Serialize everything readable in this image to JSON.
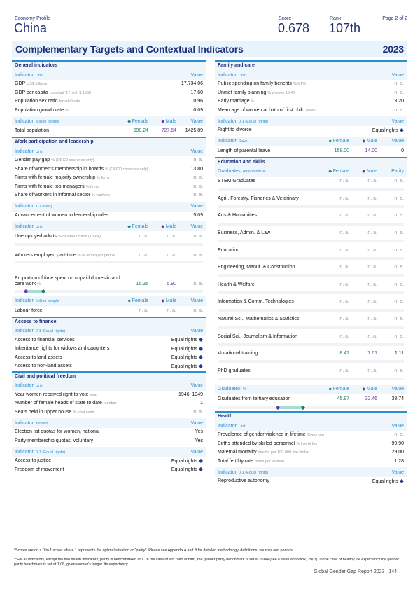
{
  "header": {
    "doc_label": "Economy Profile",
    "country": "China",
    "score_label": "Score",
    "score": "0.678",
    "rank_label": "Rank",
    "rank": "107th",
    "page": "Page 2 of 2"
  },
  "banner": {
    "title": "Complementary Targets and Contextual Indicators",
    "year": "2023"
  },
  "colors": {
    "accent": "#2a8fd0",
    "navy": "#1e2f78",
    "female": "#1f7a6a",
    "male": "#6a3d9a",
    "parity_diamond": "#243a8f",
    "band": "#eef6fc"
  },
  "track_scale": [
    0,
    100
  ],
  "columns": [
    [
      {
        "title": "General indicators",
        "groups": [
          {
            "header": {
              "label": "Indicator",
              "unit": "Unit",
              "value": "Value"
            },
            "rows": [
              {
                "name": "GDP",
                "unit": "US$ billions",
                "value": "17,734.06"
              },
              {
                "name": "GDP per capita",
                "unit": "constant '17, intl. $ 1000",
                "value": "17.60"
              },
              {
                "name": "Population sex ratio",
                "unit": "female/male",
                "value": "0.96"
              },
              {
                "name": "Population growth rate",
                "unit": "%",
                "value": "0.09"
              }
            ]
          },
          {
            "header": {
              "label": "Indicator",
              "unit": "Million people",
              "female": "Female",
              "male": "Male",
              "value": "Value"
            },
            "rows": [
              {
                "name": "Total population",
                "female": "698.24",
                "male": "727.64",
                "value": "1425.89"
              }
            ]
          }
        ]
      },
      {
        "title": "Work participation and leadership",
        "groups": [
          {
            "header": {
              "label": "Indicator",
              "unit": "Unit",
              "value": "Value"
            },
            "rows": [
              {
                "name": "Gender pay gap",
                "unit": "% (OECD countries only)",
                "value": "n. a."
              },
              {
                "name": "Share of women's membership in boards",
                "unit": "% (OECD countries only)",
                "value": "13.80"
              },
              {
                "name": "Firms with female majority ownership",
                "unit": "% firms",
                "value": "n. a."
              },
              {
                "name": "Firms with female top managers",
                "unit": "% firms",
                "value": "n. a."
              },
              {
                "name": "Share of workers in informal sector",
                "unit": "% workers",
                "value": "n. a."
              }
            ]
          },
          {
            "header": {
              "label": "Indicator",
              "unit": "1-7 (best)",
              "value": "Value"
            },
            "rows": [
              {
                "name": "Advancement of women to leadership roles",
                "value": "5.09"
              }
            ]
          },
          {
            "header": {
              "label": "Indicator",
              "unit": "Unit",
              "female": "Female",
              "male": "Male",
              "value": "Value"
            },
            "rows": [
              {
                "name": "Unemployed adults",
                "unit": "% of labour force (15-64)",
                "female": "n. a.",
                "male": "n. a.",
                "value": "n. a.",
                "track": true
              },
              {
                "name": "Workers employed part-time",
                "unit": "% of employed people",
                "female": "n. a.",
                "male": "n. a.",
                "value": "n. a.",
                "track": true,
                "tall": true
              },
              {
                "name": "Proportion of time spent on unpaid domestic and care work",
                "unit": "%",
                "female": "15.35",
                "male": "5.90",
                "value": "n. a.",
                "track": true,
                "tall": true,
                "gap": [
                  15.35,
                  5.9
                ]
              }
            ]
          },
          {
            "header": {
              "label": "Indicator",
              "unit": "Million people",
              "female": "Female",
              "male": "Male",
              "value": "Value"
            },
            "rows": [
              {
                "name": "Labour-force",
                "female": "n. a.",
                "male": "n. a.",
                "value": "n. a."
              }
            ]
          }
        ]
      },
      {
        "title": "Access to finance",
        "groups": [
          {
            "header": {
              "label": "Indicator",
              "unit": "0-1 (Equal rights)",
              "value": "Value"
            },
            "rows": [
              {
                "name": "Access to financial services",
                "value": "Equal rights",
                "diamond": true
              },
              {
                "name": "Inheritance rights for widows and daughters",
                "value": "Equal rights",
                "diamond": true
              },
              {
                "name": "Access to land assets",
                "value": "Equal rights",
                "diamond": true
              },
              {
                "name": "Access to non-land assets",
                "value": "Equal rights",
                "diamond": true
              }
            ]
          }
        ]
      },
      {
        "title": "Civil and political freedom",
        "groups": [
          {
            "header": {
              "label": "Indicator",
              "unit": "Unit",
              "value": "Value"
            },
            "rows": [
              {
                "name": "Year women received right to vote",
                "unit": "year",
                "value": "1946, 1949"
              },
              {
                "name": "Number of female heads of state to date",
                "unit": "number",
                "value": "1"
              },
              {
                "name": "Seats held in upper house",
                "unit": "% total seats",
                "value": "n. a."
              }
            ]
          },
          {
            "header": {
              "label": "Indicator",
              "unit": "Yes/No",
              "value": "Value"
            },
            "rows": [
              {
                "name": "Election list quotas for women, national",
                "value": "Yes"
              },
              {
                "name": "Party membership quotas, voluntary",
                "value": "Yes"
              }
            ]
          },
          {
            "header": {
              "label": "Indicator",
              "unit": "0-1 (Equal rights)",
              "value": "Value"
            },
            "rows": [
              {
                "name": "Access to justice",
                "value": "Equal rights",
                "diamond": true
              },
              {
                "name": "Freedom of movement",
                "value": "Equal rights",
                "diamond": true
              }
            ]
          }
        ]
      }
    ],
    [
      {
        "title": "Family and care",
        "groups": [
          {
            "header": {
              "label": "Indicator",
              "unit": "Unit",
              "value": "Value"
            },
            "rows": [
              {
                "name": "Public spending on family benefits",
                "unit": "% GPD",
                "value": "n. a."
              },
              {
                "name": "Unmet family planning",
                "unit": "% women 15-49",
                "value": "n. a."
              },
              {
                "name": "Early marriage",
                "unit": "%",
                "value": "3.20"
              },
              {
                "name": "Mean age of women at birth of first child",
                "unit": "years",
                "value": "n. a."
              }
            ]
          },
          {
            "header": {
              "label": "Indicator",
              "unit": "0-1 (Equal rights)",
              "value": "Value"
            },
            "rows": [
              {
                "name": "Right to divorce",
                "value": "Equal rights",
                "diamond": true
              }
            ]
          },
          {
            "header": {
              "label": "Indicator",
              "unit": "Days",
              "female": "Female",
              "male": "Male",
              "value": "Value"
            },
            "rows": [
              {
                "name": "Length of parental leave",
                "female": "158.00",
                "male": "14.00",
                "value": "0"
              }
            ]
          }
        ]
      },
      {
        "title": "Education and skills",
        "groups": [
          {
            "header": {
              "label": "Graduates",
              "unit": "Attainment %",
              "female": "Female",
              "male": "Male",
              "value": "Parity"
            },
            "rows": [
              {
                "name": "STEM Graduates",
                "female": "n. a.",
                "male": "n. a.",
                "value": "n. a.",
                "track": true
              },
              {
                "name": "Agri., Forestry, Fisheries & Veterinary",
                "female": "n. a.",
                "male": "n. a.",
                "value": "n. a.",
                "track": true
              },
              {
                "name": "Arts & Humanities",
                "female": "n. a.",
                "male": "n. a.",
                "value": "n. a.",
                "track": true
              },
              {
                "name": "Business, Admin. & Law",
                "female": "n. a.",
                "male": "n. a.",
                "value": "n. a.",
                "track": true
              },
              {
                "name": "Education",
                "female": "n. a.",
                "male": "n. a.",
                "value": "n. a.",
                "track": true
              },
              {
                "name": "Engineering, Manuf. & Construction",
                "female": "n. a.",
                "male": "n. a.",
                "value": "n. a.",
                "track": true
              },
              {
                "name": "Health & Welfare",
                "female": "n. a.",
                "male": "n. a.",
                "value": "n. a.",
                "track": true
              },
              {
                "name": "Information & Comm. Technologies",
                "female": "n. a.",
                "male": "n. a.",
                "value": "n. a.",
                "track": true
              },
              {
                "name": "Natural Sci., Mathematics & Statistics",
                "female": "n. a.",
                "male": "n. a.",
                "value": "n. a.",
                "track": true
              },
              {
                "name": "Social Sci., Journalism & Information",
                "female": "n. a.",
                "male": "n. a.",
                "value": "n. a.",
                "track": true
              },
              {
                "name": "Vocational training",
                "female": "8.47",
                "male": "7.61",
                "value": "1.11",
                "track": true
              },
              {
                "name": "PhD graduates",
                "female": "n. a.",
                "male": "n. a.",
                "value": "n. a.",
                "track": true
              }
            ]
          },
          {
            "header": {
              "label": "Graduates",
              "unit": "%",
              "female": "Female",
              "male": "Male",
              "value": "Value"
            },
            "rows": [
              {
                "name": "Graduates from tertiary education",
                "female": "45.87",
                "male": "32.46",
                "value": "38.74",
                "track": true,
                "gap": [
                  45.87,
                  32.46
                ]
              }
            ]
          }
        ]
      },
      {
        "title": "Health",
        "groups": [
          {
            "header": {
              "label": "Indicator",
              "unit": "Unit",
              "value": "Value"
            },
            "rows": [
              {
                "name": "Prevalence of gender violence in lifetime",
                "unit": "% women",
                "value": "n. a."
              },
              {
                "name": "Births attended by skilled personnel",
                "unit": "% live births",
                "value": "99.90"
              },
              {
                "name": "Maternal mortality",
                "unit": "deaths per 100,000 live births",
                "value": "29.00"
              },
              {
                "name": "Total fertility rate",
                "unit": "births per woman",
                "value": "1.28"
              }
            ]
          },
          {
            "header": {
              "label": "Indicator",
              "unit": "0-1 (Equal rights)",
              "value": "Value"
            },
            "rows": [
              {
                "name": "Reproductive autonomy",
                "value": "Equal rights",
                "diamond": true
              }
            ]
          }
        ]
      }
    ]
  ],
  "footnotes": [
    "*Scores are on a 0 to 1 scale, where 1 represents the optimal situation or \"parity\". Please see Appendix A and B for detailed methodology, definitions, sources and periods.",
    "**For all indicators, except the two health indicators, parity is benchmarked at 1. In the case of sex ratio at birth, the gender parity benchmark is set at 0.944 (see Klasen and Wink, 2003). In the case of healthy life expectancy the gender parity benchmark is set at 1.06, given women's longer life expectancy."
  ],
  "footer": {
    "report": "Global Gender Gap Report 2023",
    "page_number": "144"
  }
}
